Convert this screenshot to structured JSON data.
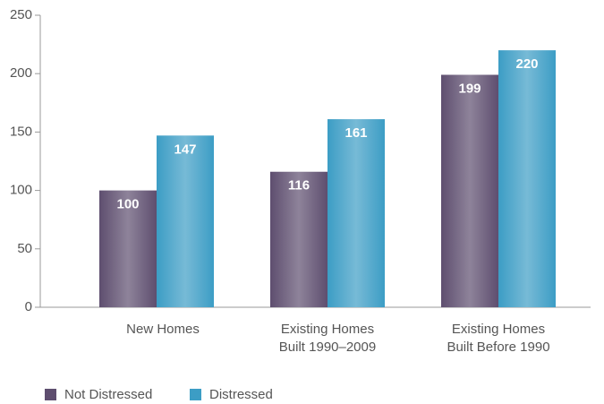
{
  "chart_data": {
    "type": "bar",
    "categories": [
      [
        "New Homes"
      ],
      [
        "Existing Homes",
        "Built 1990–2009"
      ],
      [
        "Existing Homes",
        "Built Before 1990"
      ]
    ],
    "series": [
      {
        "name": "Not Distressed",
        "color": "#5e4e6f",
        "values": [
          100,
          116,
          199
        ]
      },
      {
        "name": "Distressed",
        "color": "#3c9dc5",
        "values": [
          147,
          161,
          220
        ]
      }
    ],
    "ylim": [
      0,
      250
    ],
    "yticks": [
      0,
      50,
      100,
      150,
      200,
      250
    ],
    "grid": false,
    "legend": "bottom-left"
  }
}
